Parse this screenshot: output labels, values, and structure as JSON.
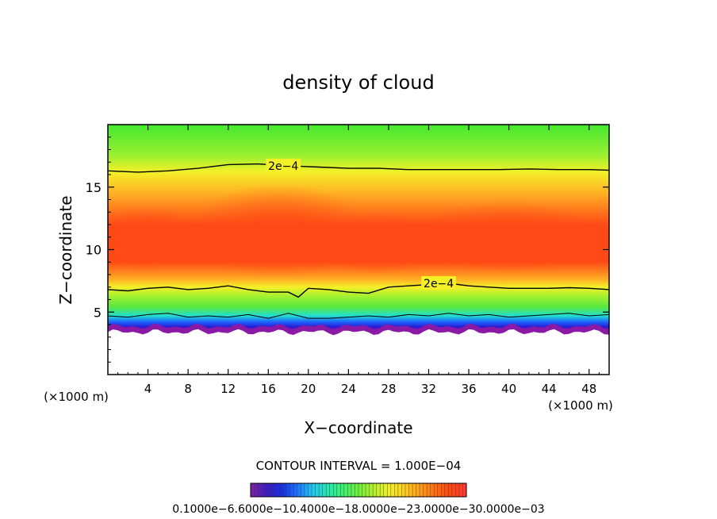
{
  "chart_data": {
    "type": "heatmap",
    "title": "density of cloud",
    "xlabel": "X−coordinate",
    "ylabel": "Z−coordinate",
    "x_unit": "(×1000 m)",
    "x_unit_right": "(×1000 m)",
    "xlim": [
      0,
      50
    ],
    "ylim": [
      0,
      20
    ],
    "x_ticks": [
      4,
      8,
      12,
      16,
      20,
      24,
      28,
      32,
      36,
      40,
      44,
      48
    ],
    "y_ticks": [
      5,
      10,
      15
    ],
    "contour_interval_text": "CONTOUR INTERVAL = 1.000E−04",
    "contour_labels": [
      {
        "text": "2e−4",
        "x": 17.5,
        "z": 16.7
      },
      {
        "text": "2e−4",
        "x": 33.0,
        "z": 7.3
      }
    ],
    "upper_contour": {
      "x": [
        0,
        3,
        6,
        9,
        12,
        15,
        18,
        21,
        24,
        27,
        30,
        33,
        36,
        39,
        42,
        45,
        48,
        50
      ],
      "z": [
        16.3,
        16.2,
        16.3,
        16.5,
        16.8,
        16.85,
        16.7,
        16.6,
        16.5,
        16.5,
        16.4,
        16.4,
        16.4,
        16.4,
        16.45,
        16.4,
        16.4,
        16.35
      ]
    },
    "lower_contour": {
      "x": [
        0,
        2,
        4,
        6,
        8,
        10,
        12,
        14,
        16,
        18,
        19,
        20,
        22,
        24,
        26,
        28,
        30,
        32,
        34,
        36,
        38,
        40,
        42,
        44,
        46,
        48,
        50
      ],
      "z": [
        6.8,
        6.7,
        6.9,
        7.0,
        6.8,
        6.9,
        7.1,
        6.8,
        6.6,
        6.6,
        6.2,
        6.9,
        6.8,
        6.6,
        6.5,
        7.0,
        7.1,
        7.2,
        7.3,
        7.1,
        7.0,
        6.9,
        6.9,
        6.9,
        6.95,
        6.9,
        6.8
      ]
    },
    "bottom_contour": {
      "x": [
        0,
        2,
        4,
        6,
        8,
        10,
        12,
        14,
        16,
        18,
        20,
        22,
        24,
        26,
        28,
        30,
        32,
        34,
        36,
        38,
        40,
        42,
        44,
        46,
        48,
        50
      ],
      "z": [
        4.7,
        4.6,
        4.8,
        4.9,
        4.6,
        4.7,
        4.6,
        4.8,
        4.5,
        4.9,
        4.5,
        4.5,
        4.6,
        4.7,
        4.6,
        4.8,
        4.7,
        4.9,
        4.7,
        4.8,
        4.6,
        4.7,
        4.8,
        4.9,
        4.7,
        4.8
      ]
    },
    "cloud_base_z": 3.4,
    "cloud_top_z": 20,
    "colorbar": {
      "labels_text": "0.1000e−6.6000e−10.4000e−18.0000e−23.0000e−30.0000e−03",
      "colors": [
        "#7a1fa8",
        "#3a1cc4",
        "#1432e6",
        "#1e78ff",
        "#20c8f0",
        "#28e8b0",
        "#3cf06e",
        "#70f03c",
        "#b4f030",
        "#f0f028",
        "#ffd020",
        "#ffa018",
        "#ff7010",
        "#ff4810",
        "#ff3a30"
      ]
    },
    "colors": {
      "top": "#44e830",
      "upper_green": "#9cf030",
      "yellow": "#f4f028",
      "orange": "#ffb024",
      "core": "#ff4a16",
      "green_band": "#5ae840",
      "cyan": "#20e0d0",
      "blue": "#1e60ff",
      "navy": "#2a1ad0",
      "purple": "#8a1aa6"
    },
    "grid": false
  }
}
